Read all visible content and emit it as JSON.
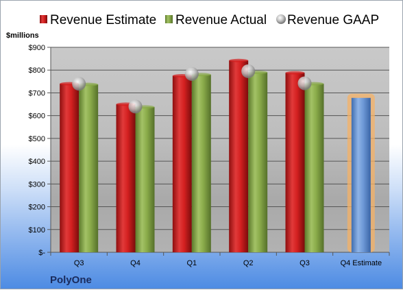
{
  "chart_data": {
    "type": "bar",
    "title": "",
    "company": "PolyOne",
    "y_unit_label": "$millions",
    "categories": [
      "Q3",
      "Q4",
      "Q1",
      "Q2",
      "Q3",
      "Q4 Estimate"
    ],
    "series": [
      {
        "name": "Revenue Estimate",
        "kind": "bar",
        "color": "#d42020",
        "values": [
          740,
          650,
          775,
          842,
          788,
          null
        ]
      },
      {
        "name": "Revenue Actual",
        "kind": "bar",
        "color": "#8aab4a",
        "values": [
          737,
          638,
          780,
          790,
          740,
          null
        ]
      },
      {
        "name": "Revenue GAAP",
        "kind": "marker",
        "color": "#b8b8b8",
        "values": [
          740,
          640,
          783,
          795,
          742,
          null
        ]
      }
    ],
    "estimate_bar": {
      "category": "Q4 Estimate",
      "value": 678,
      "color": "#6f9ad8",
      "highlight": "#f5b266"
    },
    "ylim": [
      0,
      900
    ],
    "yticks": [
      "$-",
      "$100",
      "$200",
      "$300",
      "$400",
      "$500",
      "$600",
      "$700",
      "$800",
      "$900"
    ],
    "legend_position": "top",
    "grid": true
  }
}
